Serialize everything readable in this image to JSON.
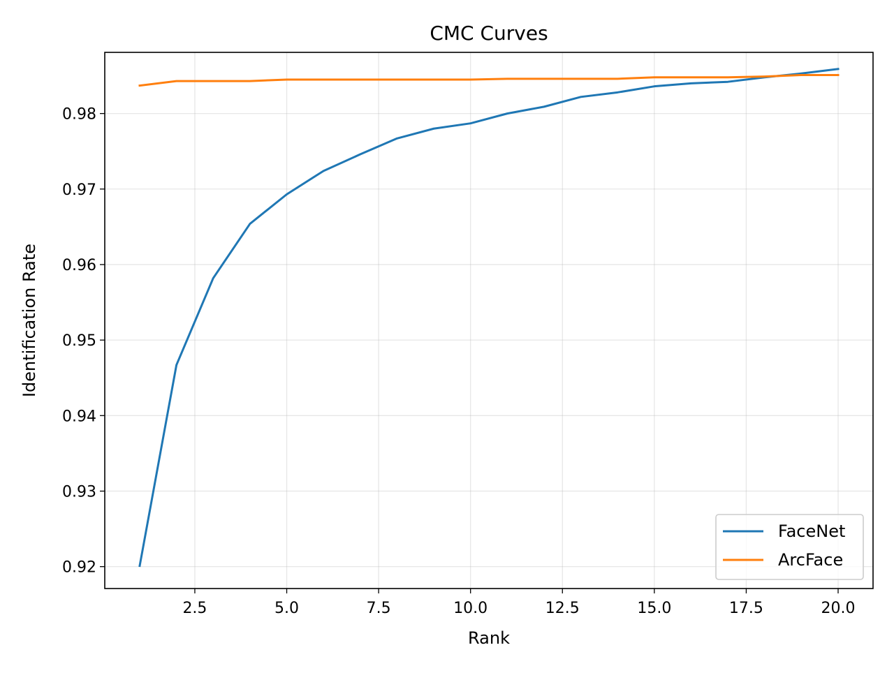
{
  "chart_data": {
    "type": "line",
    "title": "CMC Curves",
    "xlabel": "Rank",
    "ylabel": "Identification Rate",
    "xlim": [
      0.05,
      20.95
    ],
    "ylim": [
      0.9171,
      0.9881
    ],
    "x": [
      1,
      2,
      3,
      4,
      5,
      6,
      7,
      8,
      9,
      10,
      11,
      12,
      13,
      14,
      15,
      16,
      17,
      18,
      19,
      20
    ],
    "xticks": [
      2.5,
      5.0,
      7.5,
      10.0,
      12.5,
      15.0,
      17.5,
      20.0
    ],
    "xtick_labels": [
      "2.5",
      "5.0",
      "7.5",
      "10.0",
      "12.5",
      "15.0",
      "17.5",
      "20.0"
    ],
    "yticks": [
      0.92,
      0.93,
      0.94,
      0.95,
      0.96,
      0.97,
      0.98
    ],
    "ytick_labels": [
      "0.92",
      "0.93",
      "0.94",
      "0.95",
      "0.96",
      "0.97",
      "0.98"
    ],
    "grid": true,
    "legend_position": "lower right",
    "series": [
      {
        "name": "FaceNet",
        "color": "#1f77b4",
        "values": [
          0.9201,
          0.9467,
          0.9582,
          0.9654,
          0.9693,
          0.9724,
          0.9746,
          0.9767,
          0.978,
          0.9787,
          0.98,
          0.9809,
          0.9822,
          0.9828,
          0.9836,
          0.984,
          0.9842,
          0.9848,
          0.9853,
          0.9859
        ]
      },
      {
        "name": "ArcFace",
        "color": "#ff7f0e",
        "values": [
          0.9837,
          0.9843,
          0.9843,
          0.9843,
          0.9845,
          0.9845,
          0.9845,
          0.9845,
          0.9845,
          0.9845,
          0.9846,
          0.9846,
          0.9846,
          0.9846,
          0.9848,
          0.9848,
          0.9848,
          0.9849,
          0.9851,
          0.9851
        ]
      }
    ]
  }
}
